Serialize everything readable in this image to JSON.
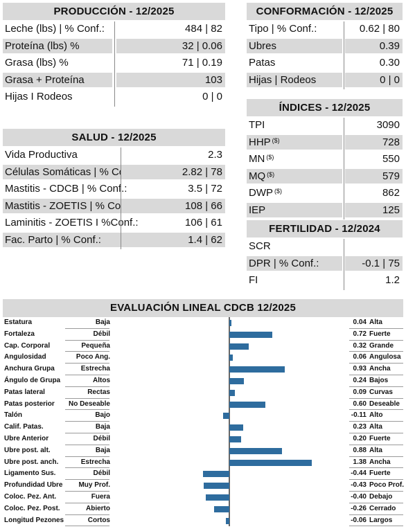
{
  "produccion": {
    "title": "PRODUCCIÓN - 12/2025",
    "rows": [
      {
        "label": "Leche (lbs) | % Conf.:",
        "value": "484 | 82",
        "shaded": false
      },
      {
        "label": "Proteína (lbs) %",
        "value": "32 | 0.06",
        "shaded": true
      },
      {
        "label": "Grasa (lbs) %",
        "value": "71 | 0.19",
        "shaded": false
      },
      {
        "label": "Grasa + Proteína",
        "value": "103",
        "shaded": true
      },
      {
        "label": "Hijas I Rodeos",
        "value": "0 | 0",
        "shaded": false
      }
    ]
  },
  "salud": {
    "title": "SALUD - 12/2025",
    "rows": [
      {
        "label": "Vida Productiva",
        "value": "2.3",
        "shaded": false
      },
      {
        "label": "Células Somáticas | % Conf.:",
        "value": "2.82 | 78",
        "shaded": true
      },
      {
        "label": "Mastitis - CDCB | % Conf.:",
        "value": "3.5 | 72",
        "shaded": false
      },
      {
        "label": "Mastitis - ZOETIS | % Conf.:",
        "value": "108 | 66",
        "shaded": true
      },
      {
        "label": "Laminitis - ZOETIS I %Conf.:",
        "value": "106 | 61",
        "shaded": false
      },
      {
        "label": "Fac. Parto | % Conf.:",
        "value": "1.4 | 62",
        "shaded": true
      }
    ]
  },
  "conformacion": {
    "title": "CONFORMACIÓN - 12/2025",
    "rows": [
      {
        "label": "Tipo | % Conf.:",
        "value": "0.62 | 80",
        "shaded": false
      },
      {
        "label": "Ubres",
        "value": "0.39",
        "shaded": true
      },
      {
        "label": "Patas",
        "value": "0.30",
        "shaded": false
      },
      {
        "label": "Hijas | Rodeos",
        "value": "0 | 0",
        "shaded": true
      }
    ]
  },
  "indices": {
    "title": "ÍNDICES - 12/2025",
    "sup": "($)",
    "rows": [
      {
        "label": "TPI",
        "value": "3090",
        "shaded": false,
        "sup": false
      },
      {
        "label": "HHP",
        "value": "728",
        "shaded": true,
        "sup": true
      },
      {
        "label": "MN",
        "value": "550",
        "shaded": false,
        "sup": true
      },
      {
        "label": "MQ",
        "value": "579",
        "shaded": true,
        "sup": true
      },
      {
        "label": "DWP",
        "value": "862",
        "shaded": false,
        "sup": true
      },
      {
        "label": "IEP",
        "value": "125",
        "shaded": true,
        "sup": false
      }
    ]
  },
  "fertilidad": {
    "title": "FERTILIDAD - 12/2024",
    "rows": [
      {
        "label": "SCR",
        "value": "",
        "shaded": false
      },
      {
        "label": "DPR | % Conf.:",
        "value": "-0.1 | 75",
        "shaded": true
      },
      {
        "label": "FI",
        "value": "1.2",
        "shaded": false
      }
    ]
  },
  "evaluacion": {
    "title": "EVALUACIÓN LINEAL CDCB 12/2025",
    "bar_color": "#2e6c9e",
    "traits": [
      {
        "name": "Estatura",
        "low": "Baja",
        "value": 0.04,
        "value_text": "0.04",
        "high": "Alta"
      },
      {
        "name": "Fortaleza",
        "low": "Débil",
        "value": 0.72,
        "value_text": "0.72",
        "high": "Fuerte"
      },
      {
        "name": "Cap. Corporal",
        "low": "Pequeña",
        "value": 0.32,
        "value_text": "0.32",
        "high": "Grande"
      },
      {
        "name": "Angulosidad",
        "low": "Poco Ang.",
        "value": 0.06,
        "value_text": "0.06",
        "high": "Angulosa"
      },
      {
        "name": "Anchura Grupa",
        "low": "Estrecha",
        "value": 0.93,
        "value_text": "0.93",
        "high": "Ancha"
      },
      {
        "name": "Ángulo de Grupa",
        "low": "Altos",
        "value": 0.24,
        "value_text": "0.24",
        "high": "Bajos"
      },
      {
        "name": "Patas lateral",
        "low": "Rectas",
        "value": 0.09,
        "value_text": "0.09",
        "high": "Curvas"
      },
      {
        "name": "Patas posterior",
        "low": "No Deseable",
        "value": 0.6,
        "value_text": "0.60",
        "high": "Deseable"
      },
      {
        "name": "Talón",
        "low": "Bajo",
        "value": -0.11,
        "value_text": "-0.11",
        "high": "Alto"
      },
      {
        "name": "Calif. Patas.",
        "low": "Baja",
        "value": 0.23,
        "value_text": "0.23",
        "high": "Alta"
      },
      {
        "name": "Ubre Anterior",
        "low": "Débil",
        "value": 0.2,
        "value_text": "0.20",
        "high": "Fuerte"
      },
      {
        "name": "Ubre post. alt.",
        "low": "Baja",
        "value": 0.88,
        "value_text": "0.88",
        "high": "Alta"
      },
      {
        "name": "Ubre post. anch.",
        "low": "Estrecha",
        "value": 1.38,
        "value_text": "1.38",
        "high": "Ancha"
      },
      {
        "name": "Ligamento Sus.",
        "low": "Débil",
        "value": -0.44,
        "value_text": "-0.44",
        "high": "Fuerte"
      },
      {
        "name": "Profundidad Ubre",
        "low": "Muy Prof.",
        "value": -0.43,
        "value_text": "-0.43",
        "high": "Poco Prof."
      },
      {
        "name": "Coloc. Pez. Ant.",
        "low": "Fuera",
        "value": -0.4,
        "value_text": "-0.40",
        "high": "Debajo"
      },
      {
        "name": "Coloc. Pez. Post.",
        "low": "Abierto",
        "value": -0.26,
        "value_text": "-0.26",
        "high": "Cerrado"
      },
      {
        "name": "Longitud Pezones",
        "low": "Cortos",
        "value": -0.06,
        "value_text": "-0.06",
        "high": "Largos"
      }
    ]
  }
}
